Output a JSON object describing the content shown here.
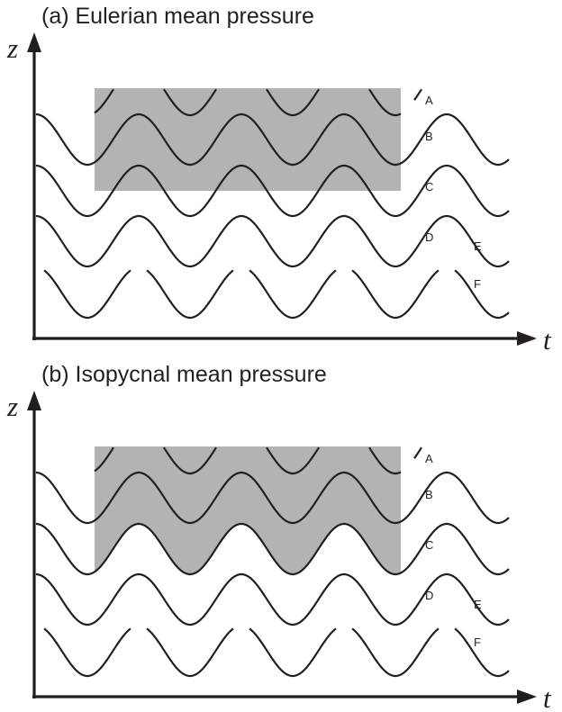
{
  "panels": [
    {
      "id": "a",
      "title": "(a) Eulerian mean pressure",
      "y_axis_label": "z",
      "x_axis_label": "t",
      "shaded_region": "flat",
      "layer_labels": [
        "A",
        "B",
        "C",
        "D",
        "E",
        "F"
      ]
    },
    {
      "id": "b",
      "title": "(b) Isopycnal mean pressure",
      "y_axis_label": "z",
      "x_axis_label": "t",
      "shaded_region": "follows-isopycnal",
      "layer_labels": [
        "A",
        "B",
        "C",
        "D",
        "E",
        "F"
      ]
    }
  ],
  "colors": {
    "ink": "#231f20",
    "shade": "#b3b3b3"
  }
}
